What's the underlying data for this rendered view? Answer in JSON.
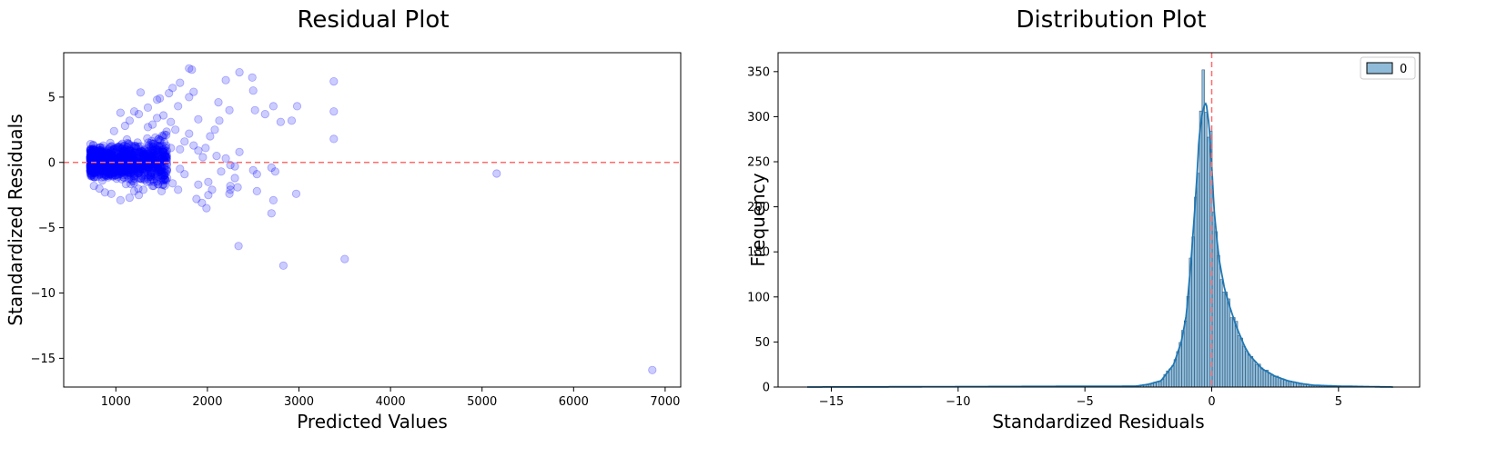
{
  "chart_data": [
    {
      "type": "scatter",
      "title": "Residual Plot",
      "xlabel": "Predicted Values",
      "ylabel": "Standardized Residuals",
      "xlim": [
        430,
        7170
      ],
      "ylim": [
        -17.2,
        8.4
      ],
      "xticks": [
        1000,
        2000,
        3000,
        4000,
        5000,
        6000,
        7000
      ],
      "yticks": [
        -15,
        -10,
        -5,
        0,
        5
      ],
      "xtick_labels": [
        "1000",
        "2000",
        "3000",
        "4000",
        "5000",
        "6000",
        "7000"
      ],
      "ytick_labels": [
        "−15",
        "−10",
        "−5",
        "0",
        "5"
      ],
      "reference_line": {
        "y": 0,
        "color": "#ff6b6b",
        "style": "dashed"
      },
      "point_color": "#0000ff",
      "point_alpha": 0.2,
      "grid": false,
      "points": [
        [
          1800,
          7.2
        ],
        [
          1830,
          7.1
        ],
        [
          2350,
          6.9
        ],
        [
          2490,
          6.5
        ],
        [
          3380,
          6.2
        ],
        [
          1700,
          6.1
        ],
        [
          1620,
          5.7
        ],
        [
          1580,
          5.3
        ],
        [
          1270,
          5.35
        ],
        [
          1800,
          5.0
        ],
        [
          1850,
          5.4
        ],
        [
          2200,
          6.3
        ],
        [
          2500,
          5.5
        ],
        [
          1450,
          4.8
        ],
        [
          1480,
          4.9
        ],
        [
          1680,
          4.3
        ],
        [
          2120,
          4.6
        ],
        [
          2240,
          4.0
        ],
        [
          2520,
          4.0
        ],
        [
          2630,
          3.7
        ],
        [
          2720,
          4.3
        ],
        [
          2980,
          4.3
        ],
        [
          3380,
          3.9
        ],
        [
          2800,
          3.1
        ],
        [
          2920,
          3.2
        ],
        [
          2130,
          3.2
        ],
        [
          1900,
          3.3
        ],
        [
          3380,
          1.8
        ],
        [
          2350,
          0.8
        ],
        [
          2080,
          2.5
        ],
        [
          2030,
          2.0
        ],
        [
          1980,
          1.1
        ],
        [
          2100,
          0.5
        ],
        [
          2200,
          0.3
        ],
        [
          2250,
          -0.2
        ],
        [
          2300,
          -0.3
        ],
        [
          2150,
          -0.7
        ],
        [
          2500,
          -0.6
        ],
        [
          2700,
          -0.4
        ],
        [
          2740,
          -0.7
        ],
        [
          2540,
          -0.9
        ],
        [
          2300,
          -1.2
        ],
        [
          2250,
          -1.8
        ],
        [
          2330,
          -1.9
        ],
        [
          2010,
          -1.5
        ],
        [
          1900,
          -1.7
        ],
        [
          2050,
          -2.1
        ],
        [
          2250,
          -2.1
        ],
        [
          2540,
          -2.2
        ],
        [
          2720,
          -2.9
        ],
        [
          2970,
          -2.4
        ],
        [
          2240,
          -2.4
        ],
        [
          2010,
          -2.5
        ],
        [
          1940,
          -3.1
        ],
        [
          1880,
          -2.8
        ],
        [
          1990,
          -3.5
        ],
        [
          2700,
          -3.9
        ],
        [
          2340,
          -6.4
        ],
        [
          2830,
          -7.9
        ],
        [
          3500,
          -7.4
        ],
        [
          5160,
          -0.85
        ],
        [
          6860,
          -15.9
        ],
        [
          1750,
          1.6
        ],
        [
          1800,
          2.2
        ],
        [
          1850,
          1.3
        ],
        [
          1900,
          0.9
        ],
        [
          1950,
          0.4
        ],
        [
          1650,
          2.5
        ],
        [
          1700,
          -0.5
        ],
        [
          1750,
          -0.9
        ],
        [
          1620,
          -1.6
        ],
        [
          1680,
          -2.1
        ],
        [
          1560,
          -1.2
        ],
        [
          1600,
          3.1
        ],
        [
          1520,
          3.6
        ],
        [
          1400,
          2.9
        ],
        [
          1350,
          4.2
        ],
        [
          1250,
          3.7
        ],
        [
          1150,
          3.2
        ],
        [
          1200,
          3.9
        ],
        [
          1050,
          3.8
        ],
        [
          1100,
          2.8
        ],
        [
          980,
          2.4
        ],
        [
          1300,
          -2.1
        ],
        [
          1250,
          -2.5
        ],
        [
          1200,
          -2.2
        ],
        [
          1150,
          -2.7
        ],
        [
          1050,
          -2.9
        ],
        [
          950,
          -2.4
        ],
        [
          880,
          -2.3
        ],
        [
          820,
          -2.0
        ],
        [
          760,
          -1.8
        ],
        [
          1400,
          -1.8
        ],
        [
          1500,
          -2.2
        ],
        [
          1450,
          3.4
        ],
        [
          1550,
          2.1
        ],
        [
          1350,
          2.7
        ],
        [
          1600,
          1.1
        ],
        [
          1700,
          1.0
        ],
        [
          1480,
          -0.5
        ],
        [
          1520,
          0.8
        ]
      ],
      "dense_cloud": {
        "x_range": [
          720,
          1560
        ],
        "x_mode": 1050,
        "y_mean": 0.0,
        "y_spread": 1.0,
        "count": 1300
      }
    },
    {
      "type": "histogram",
      "title": "Distribution Plot",
      "xlabel": "Standardized Residuals",
      "ylabel": "Frequency",
      "xlim": [
        -17.1,
        8.2
      ],
      "ylim": [
        0,
        371
      ],
      "xticks": [
        -15,
        -10,
        -5,
        0,
        5
      ],
      "yticks": [
        0,
        50,
        100,
        150,
        200,
        250,
        300,
        350
      ],
      "xtick_labels": [
        "−15",
        "−10",
        "−5",
        "0",
        "5"
      ],
      "ytick_labels": [
        "0",
        "50",
        "100",
        "150",
        "200",
        "250",
        "300",
        "350"
      ],
      "legend": {
        "position": "upper right",
        "entries": [
          "0"
        ]
      },
      "reference_line": {
        "x": 0,
        "color": "#ff6b6b",
        "style": "dashed"
      },
      "bar_color": "#1f77b4",
      "bar_alpha": 0.5,
      "kde_color": "#1f77b4",
      "grid": false,
      "bin_range": [
        -15.95,
        7.15
      ],
      "bin_count": 230,
      "density": {
        "x": [
          -16,
          -3.0,
          -2.5,
          -2.0,
          -1.5,
          -1.2,
          -1.0,
          -0.8,
          -0.6,
          -0.5,
          -0.4,
          -0.3,
          -0.25,
          -0.2,
          -0.15,
          -0.1,
          0.0,
          0.1,
          0.2,
          0.3,
          0.5,
          0.7,
          1.0,
          1.3,
          1.5,
          2.0,
          2.5,
          3.0,
          3.5,
          4.0,
          5.0,
          7.2
        ],
        "y": [
          0,
          1,
          3,
          7,
          25,
          50,
          80,
          145,
          225,
          275,
          300,
          312,
          315,
          312,
          300,
          290,
          245,
          195,
          165,
          140,
          110,
          90,
          65,
          45,
          35,
          20,
          12,
          7,
          4,
          2,
          1,
          0
        ]
      }
    }
  ]
}
